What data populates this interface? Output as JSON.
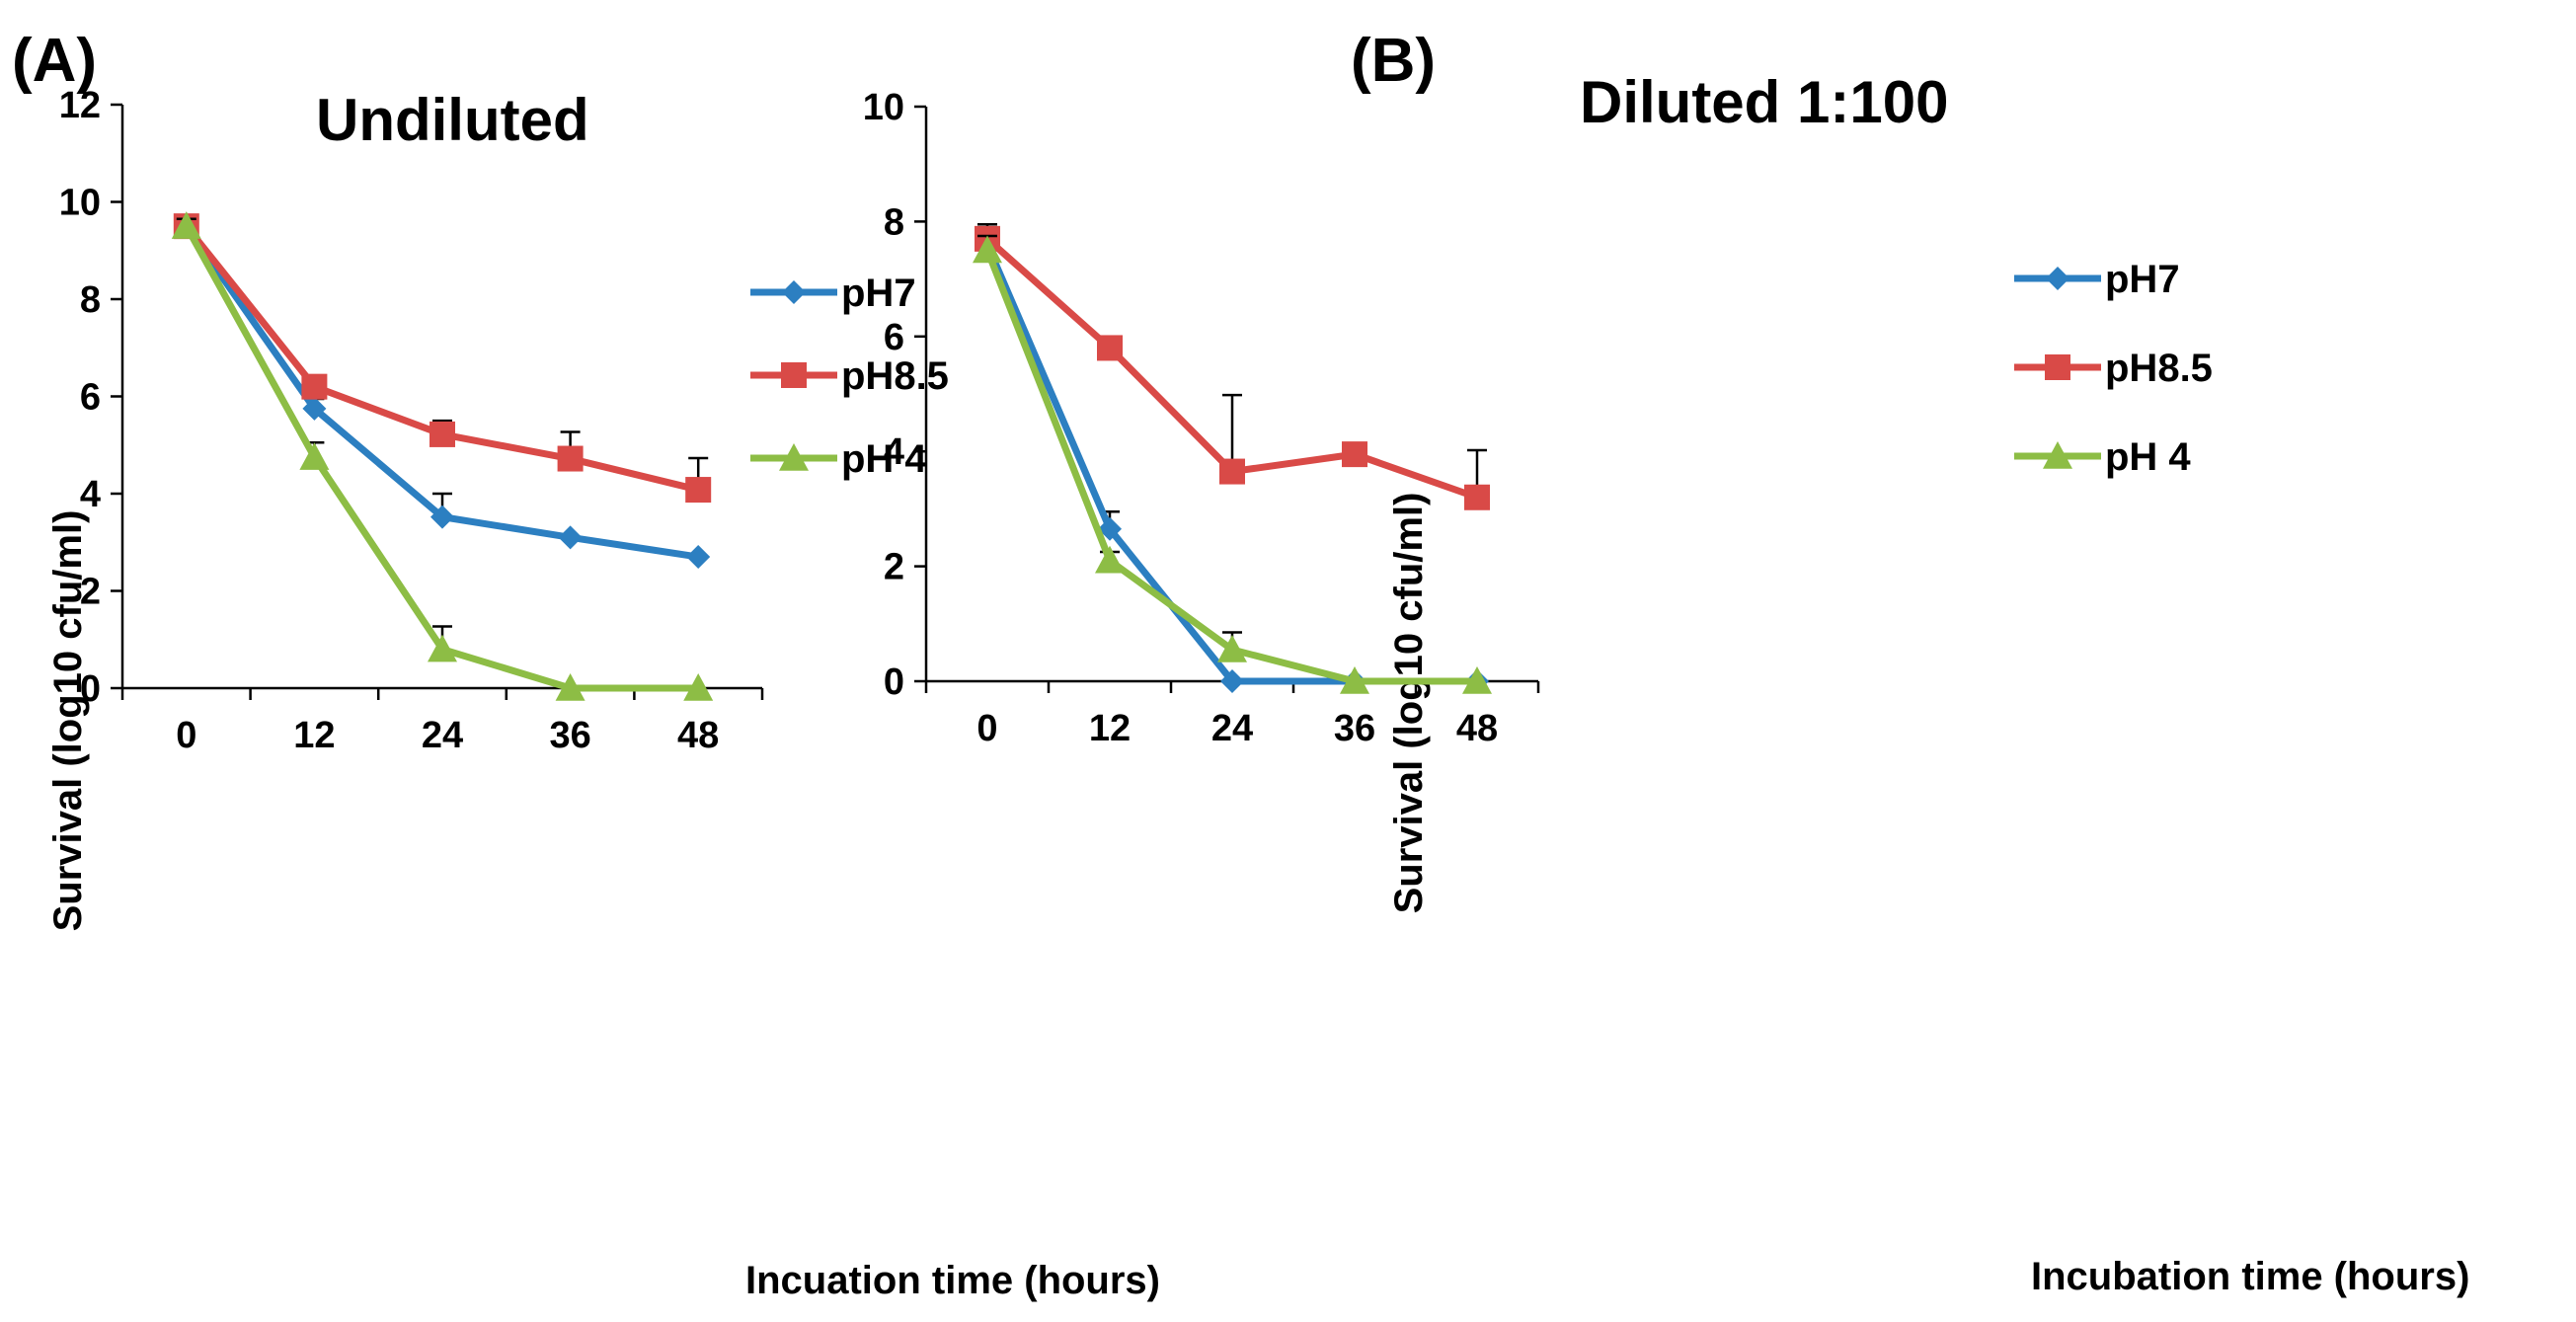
{
  "chart_data": [
    {
      "type": "line",
      "panel_label": "(A)",
      "title": "Undiluted",
      "xlabel": "Incuation time (hours)",
      "ylabel": "Survival (log10 cfu/ml)",
      "categories": [
        "0",
        "12",
        "24",
        "36",
        "48"
      ],
      "ylim": [
        0,
        12
      ],
      "yticks": [
        "0",
        "2",
        "4",
        "6",
        "8",
        "10",
        "12"
      ],
      "legend_position": "top-right",
      "series": [
        {
          "name": "pH7",
          "color": "#2C7FC1",
          "marker": "diamond",
          "values": [
            9.5,
            5.75,
            3.52,
            3.1,
            2.7
          ],
          "errors": [
            0.15,
            0.2,
            0.48,
            0,
            0
          ]
        },
        {
          "name": "pH8.5",
          "color": "#D94A47",
          "marker": "square",
          "values": [
            9.5,
            6.2,
            5.22,
            4.72,
            4.08
          ],
          "errors": [
            0.15,
            0.22,
            0.28,
            0.55,
            0.65
          ]
        },
        {
          "name": "pH 4",
          "color": "#8DBD45",
          "marker": "triangle",
          "values": [
            9.5,
            4.75,
            0.8,
            0.0,
            0.0
          ],
          "errors": [
            0.15,
            0.3,
            0.47,
            0,
            0
          ]
        }
      ]
    },
    {
      "type": "line",
      "panel_label": "(B)",
      "title": "Diluted 1:100",
      "xlabel": "Incubation time (hours)",
      "ylabel": "Survival (log10 cfu/ml)",
      "categories": [
        "0",
        "12",
        "24",
        "36",
        "48"
      ],
      "ylim": [
        0,
        10
      ],
      "yticks": [
        "0",
        "2",
        "4",
        "6",
        "8",
        "10"
      ],
      "legend_position": "top-right",
      "series": [
        {
          "name": "pH7",
          "color": "#2C7FC1",
          "marker": "diamond",
          "values": [
            7.6,
            2.65,
            0.0,
            0.0,
            0.0
          ],
          "errors": [
            0.25,
            0.3,
            0,
            0,
            0
          ]
        },
        {
          "name": "pH8.5",
          "color": "#D94A47",
          "marker": "square",
          "values": [
            7.7,
            5.8,
            3.65,
            3.95,
            3.2
          ],
          "errors": [
            0.25,
            0,
            1.33,
            0,
            0.82
          ]
        },
        {
          "name": "pH 4",
          "color": "#8DBD45",
          "marker": "triangle",
          "values": [
            7.5,
            2.1,
            0.55,
            0.0,
            0.0
          ],
          "errors": [
            0.25,
            0.15,
            0.3,
            0,
            0
          ]
        }
      ]
    }
  ]
}
